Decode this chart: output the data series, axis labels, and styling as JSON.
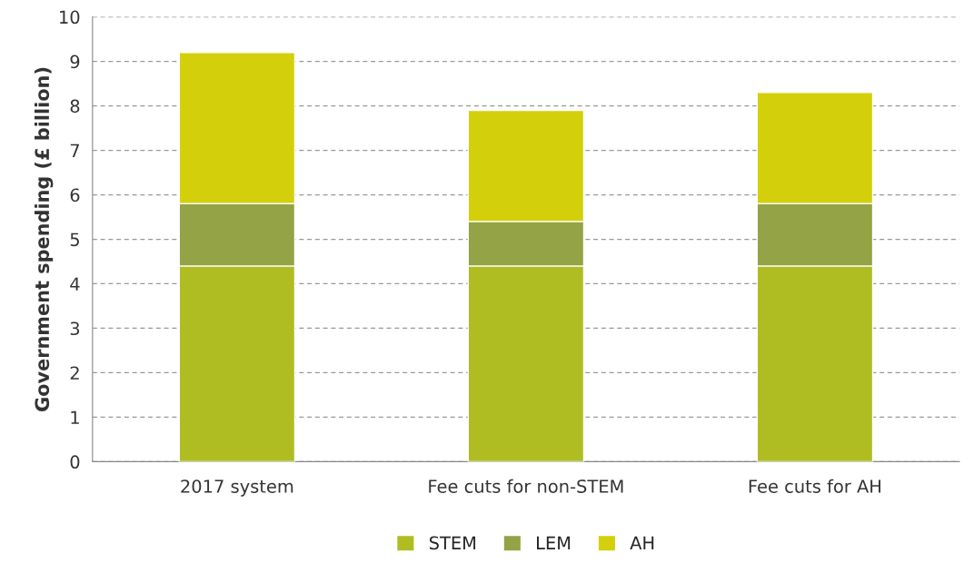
{
  "chart_data": {
    "type": "bar",
    "stacked": true,
    "ylabel": "Government spending (£ billion)",
    "categories": [
      "2017 system",
      "Fee cuts for non-STEM",
      "Fee cuts for AH"
    ],
    "series": [
      {
        "name": "STEM",
        "color": "#afbd22",
        "values": [
          4.4,
          4.4,
          4.4
        ]
      },
      {
        "name": "LEM",
        "color": "#93a345",
        "values": [
          1.4,
          1.0,
          1.4
        ]
      },
      {
        "name": "AH",
        "color": "#d4cf0b",
        "values": [
          3.4,
          2.5,
          2.5
        ]
      }
    ],
    "ylim": [
      0,
      10
    ],
    "yticks": [
      0,
      1,
      2,
      3,
      4,
      5,
      6,
      7,
      8,
      9,
      10
    ],
    "grid": "y",
    "legend": "bottom"
  }
}
